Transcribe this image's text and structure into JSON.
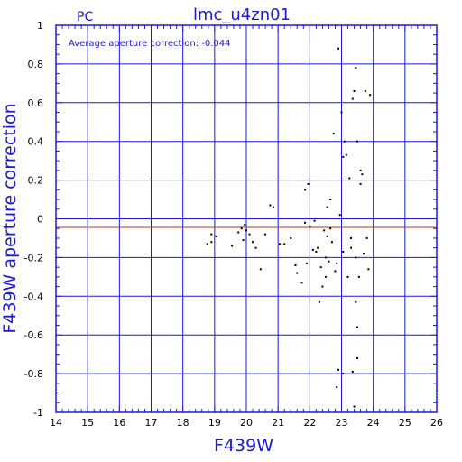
{
  "header": {
    "left_label": "PC",
    "title": "lmc_u4zn01",
    "annotation": "Average aperture correction:  -0.044"
  },
  "colors": {
    "axes": "#1a1ad6",
    "grid": "#1a1ad6",
    "average_line": "#b33a1a",
    "points": "#000000"
  },
  "chart_data": {
    "type": "scatter",
    "title": "lmc_u4zn01",
    "xlabel": "F439W",
    "ylabel": "F439W aperture correction",
    "xlim": [
      14,
      26
    ],
    "ylim": [
      -1,
      1
    ],
    "xticks": [
      14,
      15,
      16,
      17,
      18,
      19,
      20,
      21,
      22,
      23,
      24,
      25,
      26
    ],
    "yticks": [
      -1,
      -0.8,
      -0.6,
      -0.4,
      -0.2,
      0,
      0.2,
      0.4,
      0.6,
      0.8,
      1
    ],
    "xtick_labels": [
      "14",
      "15",
      "16",
      "17",
      "18",
      "19",
      "20",
      "21",
      "22",
      "23",
      "24",
      "25",
      "26"
    ],
    "ytick_labels": [
      "-1",
      "-0.8",
      "-0.6",
      "-0.4",
      "-0.2",
      "0",
      "0.2",
      "0.4",
      "0.6",
      "0.8",
      "1"
    ],
    "grid": true,
    "reference_lines": [
      {
        "y": -0.044,
        "label": "average"
      },
      {
        "y": 0,
        "label": "zero"
      }
    ],
    "series": [
      {
        "points": [
          [
            18.77,
            -0.13
          ],
          [
            18.9,
            -0.08
          ],
          [
            19.05,
            -0.09
          ],
          [
            18.9,
            -0.12
          ],
          [
            19.55,
            -0.14
          ],
          [
            19.75,
            -0.07
          ],
          [
            19.85,
            -0.05
          ],
          [
            19.95,
            -0.03
          ],
          [
            20.0,
            -0.06
          ],
          [
            19.9,
            -0.11
          ],
          [
            20.1,
            -0.08
          ],
          [
            20.2,
            -0.12
          ],
          [
            20.3,
            -0.15
          ],
          [
            20.45,
            -0.26
          ],
          [
            20.6,
            -0.08
          ],
          [
            20.75,
            0.07
          ],
          [
            20.85,
            0.06
          ],
          [
            21.05,
            -0.13
          ],
          [
            21.2,
            -0.13
          ],
          [
            21.4,
            -0.1
          ],
          [
            21.55,
            -0.24
          ],
          [
            21.6,
            -0.28
          ],
          [
            21.75,
            -0.33
          ],
          [
            21.85,
            0.15
          ],
          [
            21.9,
            -0.23
          ],
          [
            21.95,
            0.18
          ],
          [
            22.0,
            -0.04
          ],
          [
            22.1,
            -0.16
          ],
          [
            22.2,
            -0.17
          ],
          [
            22.25,
            -0.15
          ],
          [
            22.3,
            -0.43
          ],
          [
            22.35,
            -0.25
          ],
          [
            22.4,
            -0.35
          ],
          [
            22.45,
            -0.06
          ],
          [
            22.5,
            -0.3
          ],
          [
            22.55,
            -0.09
          ],
          [
            22.6,
            -0.22
          ],
          [
            22.65,
            -0.05
          ],
          [
            22.7,
            -0.12
          ],
          [
            22.75,
            0.44
          ],
          [
            22.8,
            -0.27
          ],
          [
            22.85,
            -0.23
          ],
          [
            22.9,
            0.88
          ],
          [
            22.95,
            0.02
          ],
          [
            23.0,
            0.55
          ],
          [
            23.05,
            -0.17
          ],
          [
            23.05,
            0.32
          ],
          [
            23.1,
            0.4
          ],
          [
            23.15,
            0.33
          ],
          [
            23.2,
            -0.3
          ],
          [
            23.25,
            0.21
          ],
          [
            23.3,
            -0.1
          ],
          [
            23.35,
            0.62
          ],
          [
            23.4,
            0.66
          ],
          [
            23.45,
            -0.2
          ],
          [
            23.45,
            0.78
          ],
          [
            23.5,
            0.4
          ],
          [
            23.55,
            -0.3
          ],
          [
            23.6,
            0.25
          ],
          [
            23.65,
            0.23
          ],
          [
            23.7,
            -0.18
          ],
          [
            23.75,
            0.66
          ],
          [
            23.8,
            -0.1
          ],
          [
            23.85,
            -0.26
          ],
          [
            23.9,
            0.64
          ],
          [
            23.5,
            -0.56
          ],
          [
            23.5,
            -0.72
          ],
          [
            23.45,
            -0.43
          ],
          [
            23.35,
            -0.79
          ],
          [
            23.4,
            -0.97
          ],
          [
            22.85,
            -0.87
          ],
          [
            22.9,
            -0.78
          ],
          [
            23.05,
            -0.8
          ],
          [
            22.55,
            0.06
          ],
          [
            22.65,
            0.1
          ],
          [
            22.5,
            -0.2
          ],
          [
            22.15,
            -0.01
          ],
          [
            21.85,
            -0.02
          ],
          [
            23.3,
            -0.15
          ],
          [
            23.6,
            0.18
          ]
        ]
      }
    ]
  }
}
